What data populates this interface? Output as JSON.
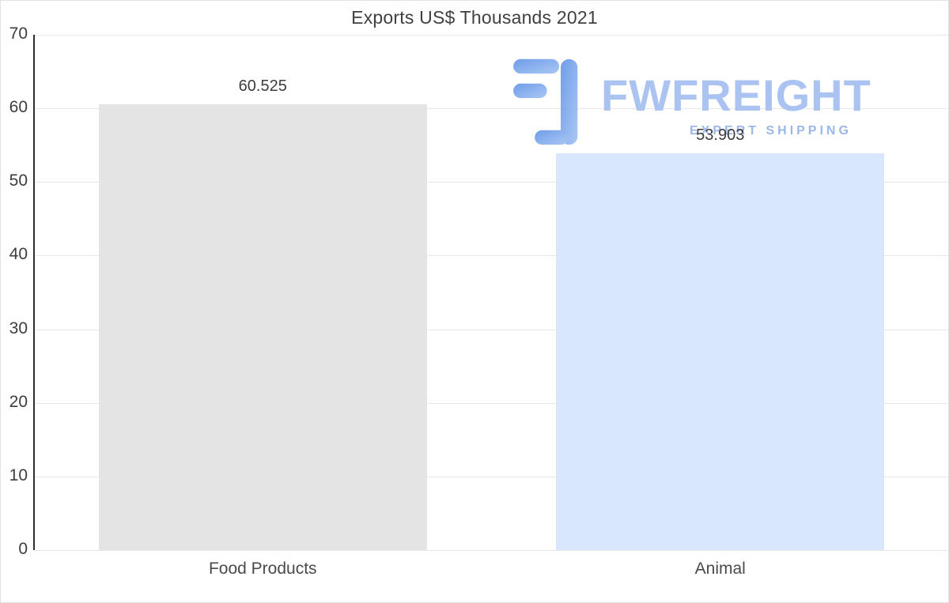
{
  "chart_data": {
    "type": "bar",
    "title": "Exports US$ Thousands 2021",
    "categories": [
      "Food Products",
      "Animal"
    ],
    "values": [
      60.525,
      53.903
    ],
    "value_labels": [
      "60.525",
      "53.903"
    ],
    "bar_colors": [
      "#e4e4e4",
      "#d8e7fb"
    ],
    "xlabel": "",
    "ylabel": "",
    "ylim": [
      0,
      70
    ],
    "yticks": [
      0,
      10,
      20,
      30,
      40,
      50,
      60,
      70
    ],
    "grid": true,
    "legend": false
  },
  "watermark": {
    "brand": "FWFREIGHT",
    "tagline": "EXPERT SHIPPING"
  },
  "colors": {
    "background": "#ffffff",
    "gridline": "#e7e7e7",
    "axis_line": "#2e2e2e",
    "title_text": "#404040",
    "tick_text": "#3d3d3d",
    "bar_food_products": "#e4e4e4",
    "bar_animal": "#d8e7fb",
    "watermark_brand": "#aac3f0",
    "watermark_tagline": "#9db7ea",
    "watermark_icon_dark": "#6f9de9",
    "watermark_icon_light": "#aac7f4"
  }
}
